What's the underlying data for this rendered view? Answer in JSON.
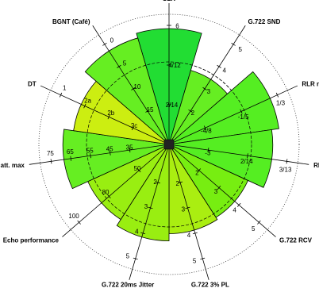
{
  "chart_data": {
    "type": "polar-area",
    "title": "",
    "grid": true,
    "center_label_color": "#000000",
    "sectors": [
      {
        "name": "SLR",
        "score": 0.96,
        "color": "#22dd33",
        "ticks": [
          "6",
          "4/12",
          "2/14"
        ]
      },
      {
        "name": "G.722 SND",
        "score": 0.64,
        "color": "#66ee22",
        "ticks": [
          "5",
          "4",
          "3",
          "2"
        ]
      },
      {
        "name": "RLR nom",
        "score": 0.92,
        "color": "#55ee22",
        "ticks": [
          "1/3",
          "-1/5",
          "-4/8"
        ]
      },
      {
        "name": "RLR max",
        "score": 0.86,
        "color": "#55ee22",
        "ticks": [
          "3/13",
          "2/14",
          "-3"
        ]
      },
      {
        "name": "G.722 RCV",
        "score": 0.72,
        "color": "#77ee11",
        "ticks": [
          "5",
          "4",
          "3",
          "2"
        ]
      },
      {
        "name": "G.722 3% PL",
        "score": 0.74,
        "color": "#aaee11",
        "ticks": [
          "5",
          "4",
          "3",
          "2"
        ]
      },
      {
        "name": "G.722 20ms Jitter",
        "score": 0.8,
        "color": "#99ee11",
        "ticks": [
          "5",
          "4",
          "3",
          "2"
        ]
      },
      {
        "name": "Echo performance",
        "score": 0.74,
        "color": "#99ee11",
        "ticks": [
          "100",
          "80",
          "50"
        ]
      },
      {
        "name": "Echo att. max",
        "score": 0.88,
        "color": "#66ee22",
        "ticks": [
          "75",
          "65",
          "55",
          "45",
          "35"
        ]
      },
      {
        "name": "DT",
        "score": 0.8,
        "color": "#ccee11",
        "ticks": [
          "1",
          "2a",
          "2b",
          "2c"
        ]
      },
      {
        "name": "BGNT (Café)",
        "score": 0.92,
        "color": "#66ee22",
        "ticks": [
          "0",
          "5",
          "10",
          "15"
        ]
      }
    ]
  }
}
